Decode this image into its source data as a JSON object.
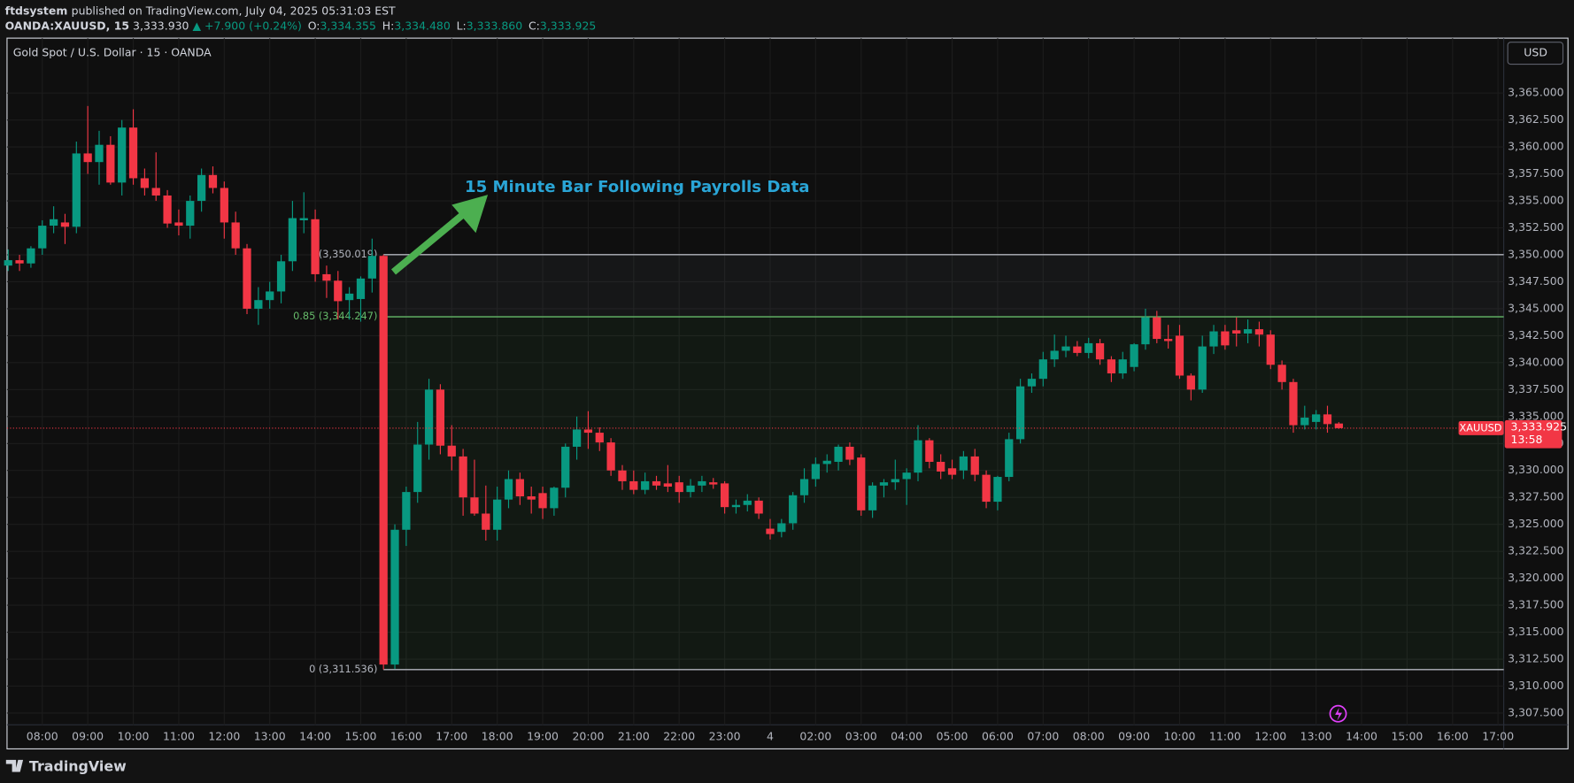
{
  "header": {
    "author": "ftdsystem",
    "published": "published on TradingView.com, July 04, 2025 05:31:03 EST",
    "symbol": "OANDA:XAUUSD, 15",
    "price": "3,333.930",
    "change": "▲ +7.900 (+0.24%)",
    "ohlc": [
      [
        "O:",
        "3,334.355"
      ],
      [
        "H:",
        "3,334.480"
      ],
      [
        "L:",
        "3,333.860"
      ],
      [
        "C:",
        "3,333.925"
      ]
    ]
  },
  "footer": {
    "brand": "TradingView"
  },
  "chart_data": {
    "type": "candlestick",
    "title": "Gold Spot / U.S. Dollar · 15 · OANDA",
    "currency": "USD",
    "annotation": "15 Minute Bar Following Payrolls Data",
    "up_color": "#089981",
    "down_color": "#f23645",
    "grid": true,
    "categories": [
      null,
      null,
      null,
      "08:00",
      null,
      null,
      null,
      "09:00",
      null,
      null,
      null,
      "10:00",
      null,
      null,
      null,
      "11:00",
      null,
      null,
      null,
      "12:00",
      null,
      null,
      null,
      "13:00",
      null,
      null,
      null,
      "14:00",
      null,
      null,
      null,
      "15:00",
      null,
      null,
      null,
      "16:00",
      null,
      null,
      null,
      "17:00",
      null,
      null,
      null,
      "18:00",
      null,
      null,
      null,
      "19:00",
      null,
      null,
      null,
      "20:00",
      null,
      null,
      null,
      "21:00",
      null,
      null,
      null,
      "22:00",
      null,
      null,
      null,
      "23:00",
      null,
      null,
      null,
      "4",
      null,
      null,
      null,
      "02:00",
      null,
      null,
      null,
      "03:00",
      null,
      null,
      null,
      "04:00",
      null,
      null,
      null,
      "05:00",
      null,
      null,
      null,
      "06:00",
      null,
      null,
      null,
      "07:00",
      null,
      null,
      null,
      "08:00",
      null,
      null,
      null,
      "09:00",
      null,
      null,
      null,
      "10:00",
      null,
      null,
      null,
      "11:00",
      null,
      null,
      null,
      "12:00",
      null,
      null,
      null,
      "13:00",
      null,
      null,
      null,
      "14:00",
      null,
      null,
      null,
      "15:00",
      null,
      null,
      null,
      "16:00",
      null,
      null,
      null,
      "17:00"
    ],
    "candles": [
      [
        3349,
        3350.5,
        3348.5,
        3349.5
      ],
      [
        3349.5,
        3350,
        3348.5,
        3349.2
      ],
      [
        3349.2,
        3350.8,
        3348.8,
        3350.6
      ],
      [
        3350.6,
        3353.2,
        3350,
        3352.7
      ],
      [
        3352.7,
        3354.5,
        3352,
        3353.3
      ],
      [
        3353,
        3353.8,
        3351,
        3352.6
      ],
      [
        3352.6,
        3360.5,
        3352,
        3359.4
      ],
      [
        3359.4,
        3363.8,
        3357.5,
        3358.6
      ],
      [
        3358.6,
        3361.5,
        3356.5,
        3360.2
      ],
      [
        3360.2,
        3361,
        3356.5,
        3356.7
      ],
      [
        3356.7,
        3362.5,
        3355.5,
        3361.8
      ],
      [
        3361.8,
        3363.5,
        3356.5,
        3357.1
      ],
      [
        3357.1,
        3358,
        3355.5,
        3356.2
      ],
      [
        3356.2,
        3359.5,
        3355,
        3355.5
      ],
      [
        3355.5,
        3356,
        3352.5,
        3352.9
      ],
      [
        3353,
        3354.2,
        3351.8,
        3352.7
      ],
      [
        3352.7,
        3355.5,
        3351.5,
        3355
      ],
      [
        3355,
        3358,
        3354,
        3357.4
      ],
      [
        3357.4,
        3358.2,
        3355.7,
        3356.2
      ],
      [
        3356.2,
        3356.8,
        3351.5,
        3353
      ],
      [
        3353,
        3354,
        3350,
        3350.6
      ],
      [
        3350.6,
        3351,
        3344.5,
        3345
      ],
      [
        3345,
        3347,
        3343.5,
        3345.8
      ],
      [
        3345.8,
        3347.5,
        3345,
        3346.6
      ],
      [
        3346.6,
        3350,
        3345.5,
        3349.4
      ],
      [
        3349.4,
        3355,
        3348.5,
        3353.4
      ],
      [
        3353.2,
        3355.8,
        3352,
        3353.4
      ],
      [
        3353.3,
        3354.2,
        3347.5,
        3348.2
      ],
      [
        3348.2,
        3349,
        3346,
        3347.6
      ],
      [
        3347.6,
        3348.5,
        3344,
        3345.7
      ],
      [
        3345.8,
        3347,
        3344,
        3346.4
      ],
      [
        3345.9,
        3348,
        3343.8,
        3347.8
      ],
      [
        3347.8,
        3351.5,
        3346.5,
        3349.9
      ],
      [
        3349.9,
        3350.019,
        3311.536,
        3312
      ],
      [
        3312,
        3325,
        3311.6,
        3324.5
      ],
      [
        3324.5,
        3328.5,
        3323,
        3328
      ],
      [
        3328,
        3334.5,
        3327,
        3332.4
      ],
      [
        3332.4,
        3338.5,
        3331,
        3337.5
      ],
      [
        3337.5,
        3338,
        3331.5,
        3332.3
      ],
      [
        3332.3,
        3334.2,
        3330,
        3331.3
      ],
      [
        3331.3,
        3332,
        3325.8,
        3327.5
      ],
      [
        3327.5,
        3331,
        3325.8,
        3326
      ],
      [
        3326,
        3328.6,
        3323.5,
        3324.5
      ],
      [
        3324.5,
        3328.5,
        3323.5,
        3327.3
      ],
      [
        3327.3,
        3330,
        3326.5,
        3329.2
      ],
      [
        3329.2,
        3329.8,
        3326.8,
        3327.6
      ],
      [
        3327.6,
        3328.5,
        3326,
        3327.3
      ],
      [
        3327.9,
        3328.5,
        3325.5,
        3326.5
      ],
      [
        3326.5,
        3328.5,
        3325.8,
        3328.4
      ],
      [
        3328.4,
        3332.5,
        3327.5,
        3332.2
      ],
      [
        3332.2,
        3335,
        3331,
        3333.8
      ],
      [
        3333.8,
        3335.5,
        3332,
        3333.5
      ],
      [
        3333.5,
        3334,
        3331.8,
        3332.6
      ],
      [
        3332.6,
        3333,
        3329.5,
        3330
      ],
      [
        3330,
        3330.5,
        3328.2,
        3329
      ],
      [
        3329,
        3330,
        3327.8,
        3328.2
      ],
      [
        3328.2,
        3329.8,
        3327.8,
        3329
      ],
      [
        3329,
        3329.5,
        3328.2,
        3328.6
      ],
      [
        3328.8,
        3330.5,
        3328,
        3328.5
      ],
      [
        3328.9,
        3329.5,
        3327,
        3328
      ],
      [
        3328,
        3329.2,
        3327.5,
        3328.6
      ],
      [
        3328.6,
        3329.5,
        3328,
        3329
      ],
      [
        3328.9,
        3329.3,
        3328.3,
        3328.7
      ],
      [
        3328.8,
        3329,
        3326,
        3326.6
      ],
      [
        3326.6,
        3327.3,
        3326,
        3326.8
      ],
      [
        3326.8,
        3327.8,
        3326.2,
        3327.2
      ],
      [
        3327.2,
        3327.5,
        3325.5,
        3326
      ],
      [
        3324.6,
        3325.5,
        3323.6,
        3324.1
      ],
      [
        3324.3,
        3325.5,
        3323.8,
        3325.1
      ],
      [
        3325.1,
        3328,
        3324.5,
        3327.7
      ],
      [
        3327.7,
        3330.2,
        3327,
        3329.2
      ],
      [
        3329.2,
        3331.2,
        3328.5,
        3330.6
      ],
      [
        3330.6,
        3331.5,
        3329.8,
        3330.9
      ],
      [
        3330.8,
        3332.4,
        3330,
        3332.2
      ],
      [
        3332.2,
        3332.6,
        3330.5,
        3331
      ],
      [
        3331.2,
        3331.5,
        3325.8,
        3326.3
      ],
      [
        3326.3,
        3328.9,
        3325.6,
        3328.6
      ],
      [
        3328.6,
        3329.2,
        3327.5,
        3328.9
      ],
      [
        3328.9,
        3331,
        3328.2,
        3329.2
      ],
      [
        3329.2,
        3330.2,
        3326.8,
        3329.8
      ],
      [
        3329.8,
        3334.2,
        3329,
        3332.8
      ],
      [
        3332.8,
        3333,
        3330.2,
        3330.8
      ],
      [
        3330.8,
        3331.5,
        3329.2,
        3329.9
      ],
      [
        3330.2,
        3331,
        3329.2,
        3329.6
      ],
      [
        3330,
        3331.8,
        3329.2,
        3331.3
      ],
      [
        3331.3,
        3332,
        3329,
        3329.6
      ],
      [
        3329.6,
        3330,
        3326.5,
        3327.1
      ],
      [
        3327.1,
        3329.5,
        3326.3,
        3329.4
      ],
      [
        3329.4,
        3333.5,
        3329,
        3332.9
      ],
      [
        3332.9,
        3338.5,
        3332.5,
        3337.8
      ],
      [
        3337.8,
        3339,
        3337.2,
        3338.5
      ],
      [
        3338.5,
        3341,
        3337.8,
        3340.3
      ],
      [
        3340.3,
        3342.6,
        3339.6,
        3341.1
      ],
      [
        3341.1,
        3342.5,
        3340.5,
        3341.5
      ],
      [
        3341.5,
        3342,
        3340.6,
        3340.9
      ],
      [
        3340.9,
        3342.3,
        3340.4,
        3341.8
      ],
      [
        3341.8,
        3342.2,
        3339.8,
        3340.3
      ],
      [
        3340.3,
        3340.6,
        3338.2,
        3339
      ],
      [
        3339,
        3341,
        3338.5,
        3340.3
      ],
      [
        3339.6,
        3341.8,
        3339.2,
        3341.7
      ],
      [
        3341.7,
        3345,
        3341.2,
        3344.2
      ],
      [
        3344.2,
        3344.8,
        3341.8,
        3342.2
      ],
      [
        3342.2,
        3343.5,
        3341.3,
        3342
      ],
      [
        3342.5,
        3343.5,
        3338.5,
        3338.8
      ],
      [
        3338.8,
        3339,
        3336.5,
        3337.5
      ],
      [
        3337.5,
        3342.5,
        3337.2,
        3341.5
      ],
      [
        3341.5,
        3343.5,
        3340.8,
        3342.9
      ],
      [
        3342.9,
        3343.5,
        3341.2,
        3341.6
      ],
      [
        3343,
        3344.2,
        3341.5,
        3342.7
      ],
      [
        3342.7,
        3344,
        3341.8,
        3343.1
      ],
      [
        3343.1,
        3343.8,
        3341.5,
        3342.6
      ],
      [
        3342.6,
        3343,
        3339.4,
        3339.8
      ],
      [
        3339.8,
        3340.2,
        3337.5,
        3338.2
      ],
      [
        3338.2,
        3338.5,
        3333.5,
        3334.2
      ],
      [
        3334.2,
        3336,
        3333.8,
        3334.9
      ],
      [
        3334.5,
        3335.6,
        3333.8,
        3335.2
      ],
      [
        3335.2,
        3336,
        3333.5,
        3334.3
      ],
      [
        3334.355,
        3334.48,
        3333.86,
        3333.925
      ],
      null,
      null,
      null,
      null,
      null,
      null,
      null,
      null,
      null,
      null,
      null,
      null,
      null,
      null
    ],
    "ylim": [
      3306.6,
      3370.0
    ],
    "yticks": [
      {
        "value": 3307.5,
        "label": "3,307.500"
      },
      {
        "value": 3310,
        "label": "3,310.000"
      },
      {
        "value": 3312.5,
        "label": "3,312.500"
      },
      {
        "value": 3315,
        "label": "3,315.000"
      },
      {
        "value": 3317.5,
        "label": "3,317.500"
      },
      {
        "value": 3320,
        "label": "3,320.000"
      },
      {
        "value": 3322.5,
        "label": "3,322.500"
      },
      {
        "value": 3325,
        "label": "3,325.000"
      },
      {
        "value": 3327.5,
        "label": "3,327.500"
      },
      {
        "value": 3330,
        "label": "3,330.000"
      },
      {
        "value": 3332.5,
        "label": "3,332.500"
      },
      {
        "value": 3335,
        "label": "3,335.000"
      },
      {
        "value": 3337.5,
        "label": "3,337.500"
      },
      {
        "value": 3340,
        "label": "3,340.000"
      },
      {
        "value": 3342.5,
        "label": "3,342.500"
      },
      {
        "value": 3345,
        "label": "3,345.000"
      },
      {
        "value": 3347.5,
        "label": "3,347.500"
      },
      {
        "value": 3350,
        "label": "3,350.000"
      },
      {
        "value": 3352.5,
        "label": "3,352.500"
      },
      {
        "value": 3355,
        "label": "3,355.000"
      },
      {
        "value": 3357.5,
        "label": "3,357.500"
      },
      {
        "value": 3360,
        "label": "3,360.000"
      },
      {
        "value": 3362.5,
        "label": "3,362.500"
      },
      {
        "value": 3365,
        "label": "3,365.000"
      }
    ],
    "levels": [
      {
        "value": 3350.019,
        "label": "(3,350.019)",
        "color": "#b2b5be"
      },
      {
        "value": 3344.247,
        "label": "0.85 (3,344.247)",
        "color": "#66bb6a"
      },
      {
        "value": 3311.536,
        "label": "0 (3,311.536)",
        "color": "#b2b5be"
      }
    ],
    "last": {
      "name": "XAUUSD",
      "value": 3333.925,
      "label": "3,333.925",
      "countdown": "13:58",
      "color": "#f23645"
    }
  }
}
